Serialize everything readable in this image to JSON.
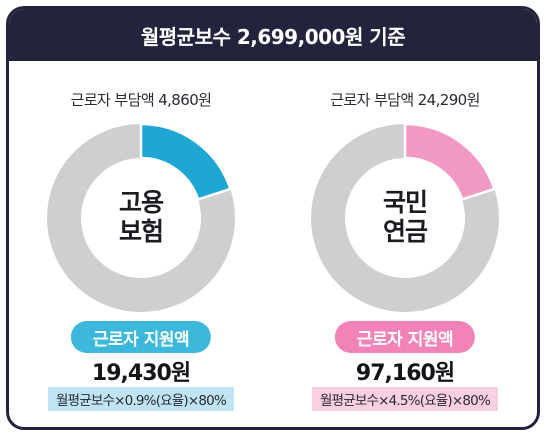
{
  "header": {
    "title": "월평균보수 2,699,000원 기준"
  },
  "colors": {
    "header_bg": "#23233d",
    "ring_track": "#cfcfd1",
    "employment_accent": "#1ea7d4",
    "employment_pill": "#3cb8dd",
    "employment_formula_bg": "#bfe5f4",
    "pension_accent": "#f39ac4",
    "pension_pill": "#f283b8",
    "pension_formula_bg": "#f9cfe2"
  },
  "chart_data": [
    {
      "type": "pie",
      "label": "고용 보험",
      "burden_text": "근로자 부담액 4,860원",
      "pill_text": "근로자 지원액",
      "amount_text": "19,430원",
      "formula_text": "월평균보수×0.9%(요율)×80%",
      "slices": [
        {
          "name": "근로자 부담액",
          "value": 4860
        },
        {
          "name": "근로자 지원액",
          "value": 19430
        }
      ]
    },
    {
      "type": "pie",
      "label": "국민 연금",
      "burden_text": "근로자 부담액 24,290원",
      "pill_text": "근로자 지원액",
      "amount_text": "97,160원",
      "formula_text": "월평균보수×4.5%(요율)×80%",
      "slices": [
        {
          "name": "근로자 부담액",
          "value": 24290
        },
        {
          "name": "근로자 지원액",
          "value": 97160
        }
      ]
    }
  ]
}
